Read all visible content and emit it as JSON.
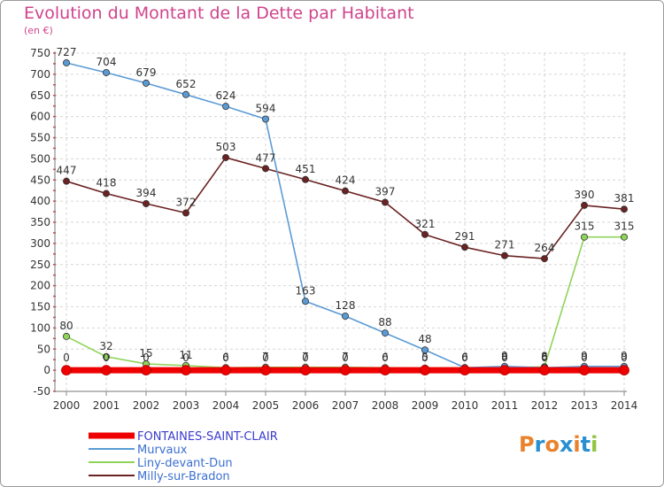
{
  "chart_data": {
    "type": "line",
    "title": "Evolution du Montant de la Dette par Habitant",
    "unit_label": "(en €)",
    "xlabel": "",
    "ylabel": "",
    "ylim": [
      -50,
      750
    ],
    "yticks": [
      -50,
      0,
      50,
      100,
      150,
      200,
      250,
      300,
      350,
      400,
      450,
      500,
      550,
      600,
      650,
      700,
      750
    ],
    "x": [
      "2000",
      "2001",
      "2002",
      "2003",
      "2004",
      "2005",
      "2006",
      "2007",
      "2008",
      "2009",
      "2010",
      "2011",
      "2012",
      "2013",
      "2014"
    ],
    "series": [
      {
        "name": "FONTAINES-SAINT-CLAIR",
        "color": "#ee0000",
        "values": [
          0,
          0,
          0,
          0,
          0,
          0,
          0,
          0,
          0,
          0,
          0,
          0,
          0,
          0,
          0
        ],
        "labels": [
          "0",
          "0",
          "0",
          "0",
          "0",
          "0",
          "0",
          "0",
          "0",
          "0",
          "0",
          "0",
          "0",
          "0",
          "0"
        ]
      },
      {
        "name": "Murvaux",
        "color": "#5b9bd5",
        "values": [
          727,
          704,
          679,
          652,
          624,
          594,
          163,
          128,
          88,
          48,
          6,
          9,
          6,
          9,
          9
        ],
        "labels": [
          "727",
          "704",
          "679",
          "652",
          "624",
          "594",
          "163",
          "128",
          "88",
          "48",
          "6",
          "9",
          "6",
          "9",
          "9"
        ]
      },
      {
        "name": "Liny-devant-Dun",
        "color": "#8fd45a",
        "values": [
          80,
          32,
          15,
          11,
          6,
          7,
          7,
          7,
          6,
          5,
          6,
          6,
          8,
          315,
          315
        ],
        "labels": [
          "80",
          "32",
          "15",
          "11",
          "6",
          "7",
          "7",
          "7",
          "6",
          "5",
          "6",
          "6",
          "8",
          "315",
          "315"
        ]
      },
      {
        "name": "Milly-sur-Bradon",
        "color": "#6b2222",
        "values": [
          447,
          418,
          394,
          372,
          503,
          477,
          451,
          424,
          397,
          321,
          291,
          271,
          264,
          390,
          381
        ],
        "labels": [
          "447",
          "418",
          "394",
          "372",
          "503",
          "477",
          "451",
          "424",
          "397",
          "321",
          "291",
          "271",
          "264",
          "390",
          "381"
        ]
      }
    ]
  },
  "logo": {
    "text": "Proxiti",
    "colors": [
      "#e9822a",
      "#2a8fd0",
      "#e9822a",
      "#2a8fd0",
      "#e9822a",
      "#2a8fd0",
      "#8fc63f"
    ]
  }
}
